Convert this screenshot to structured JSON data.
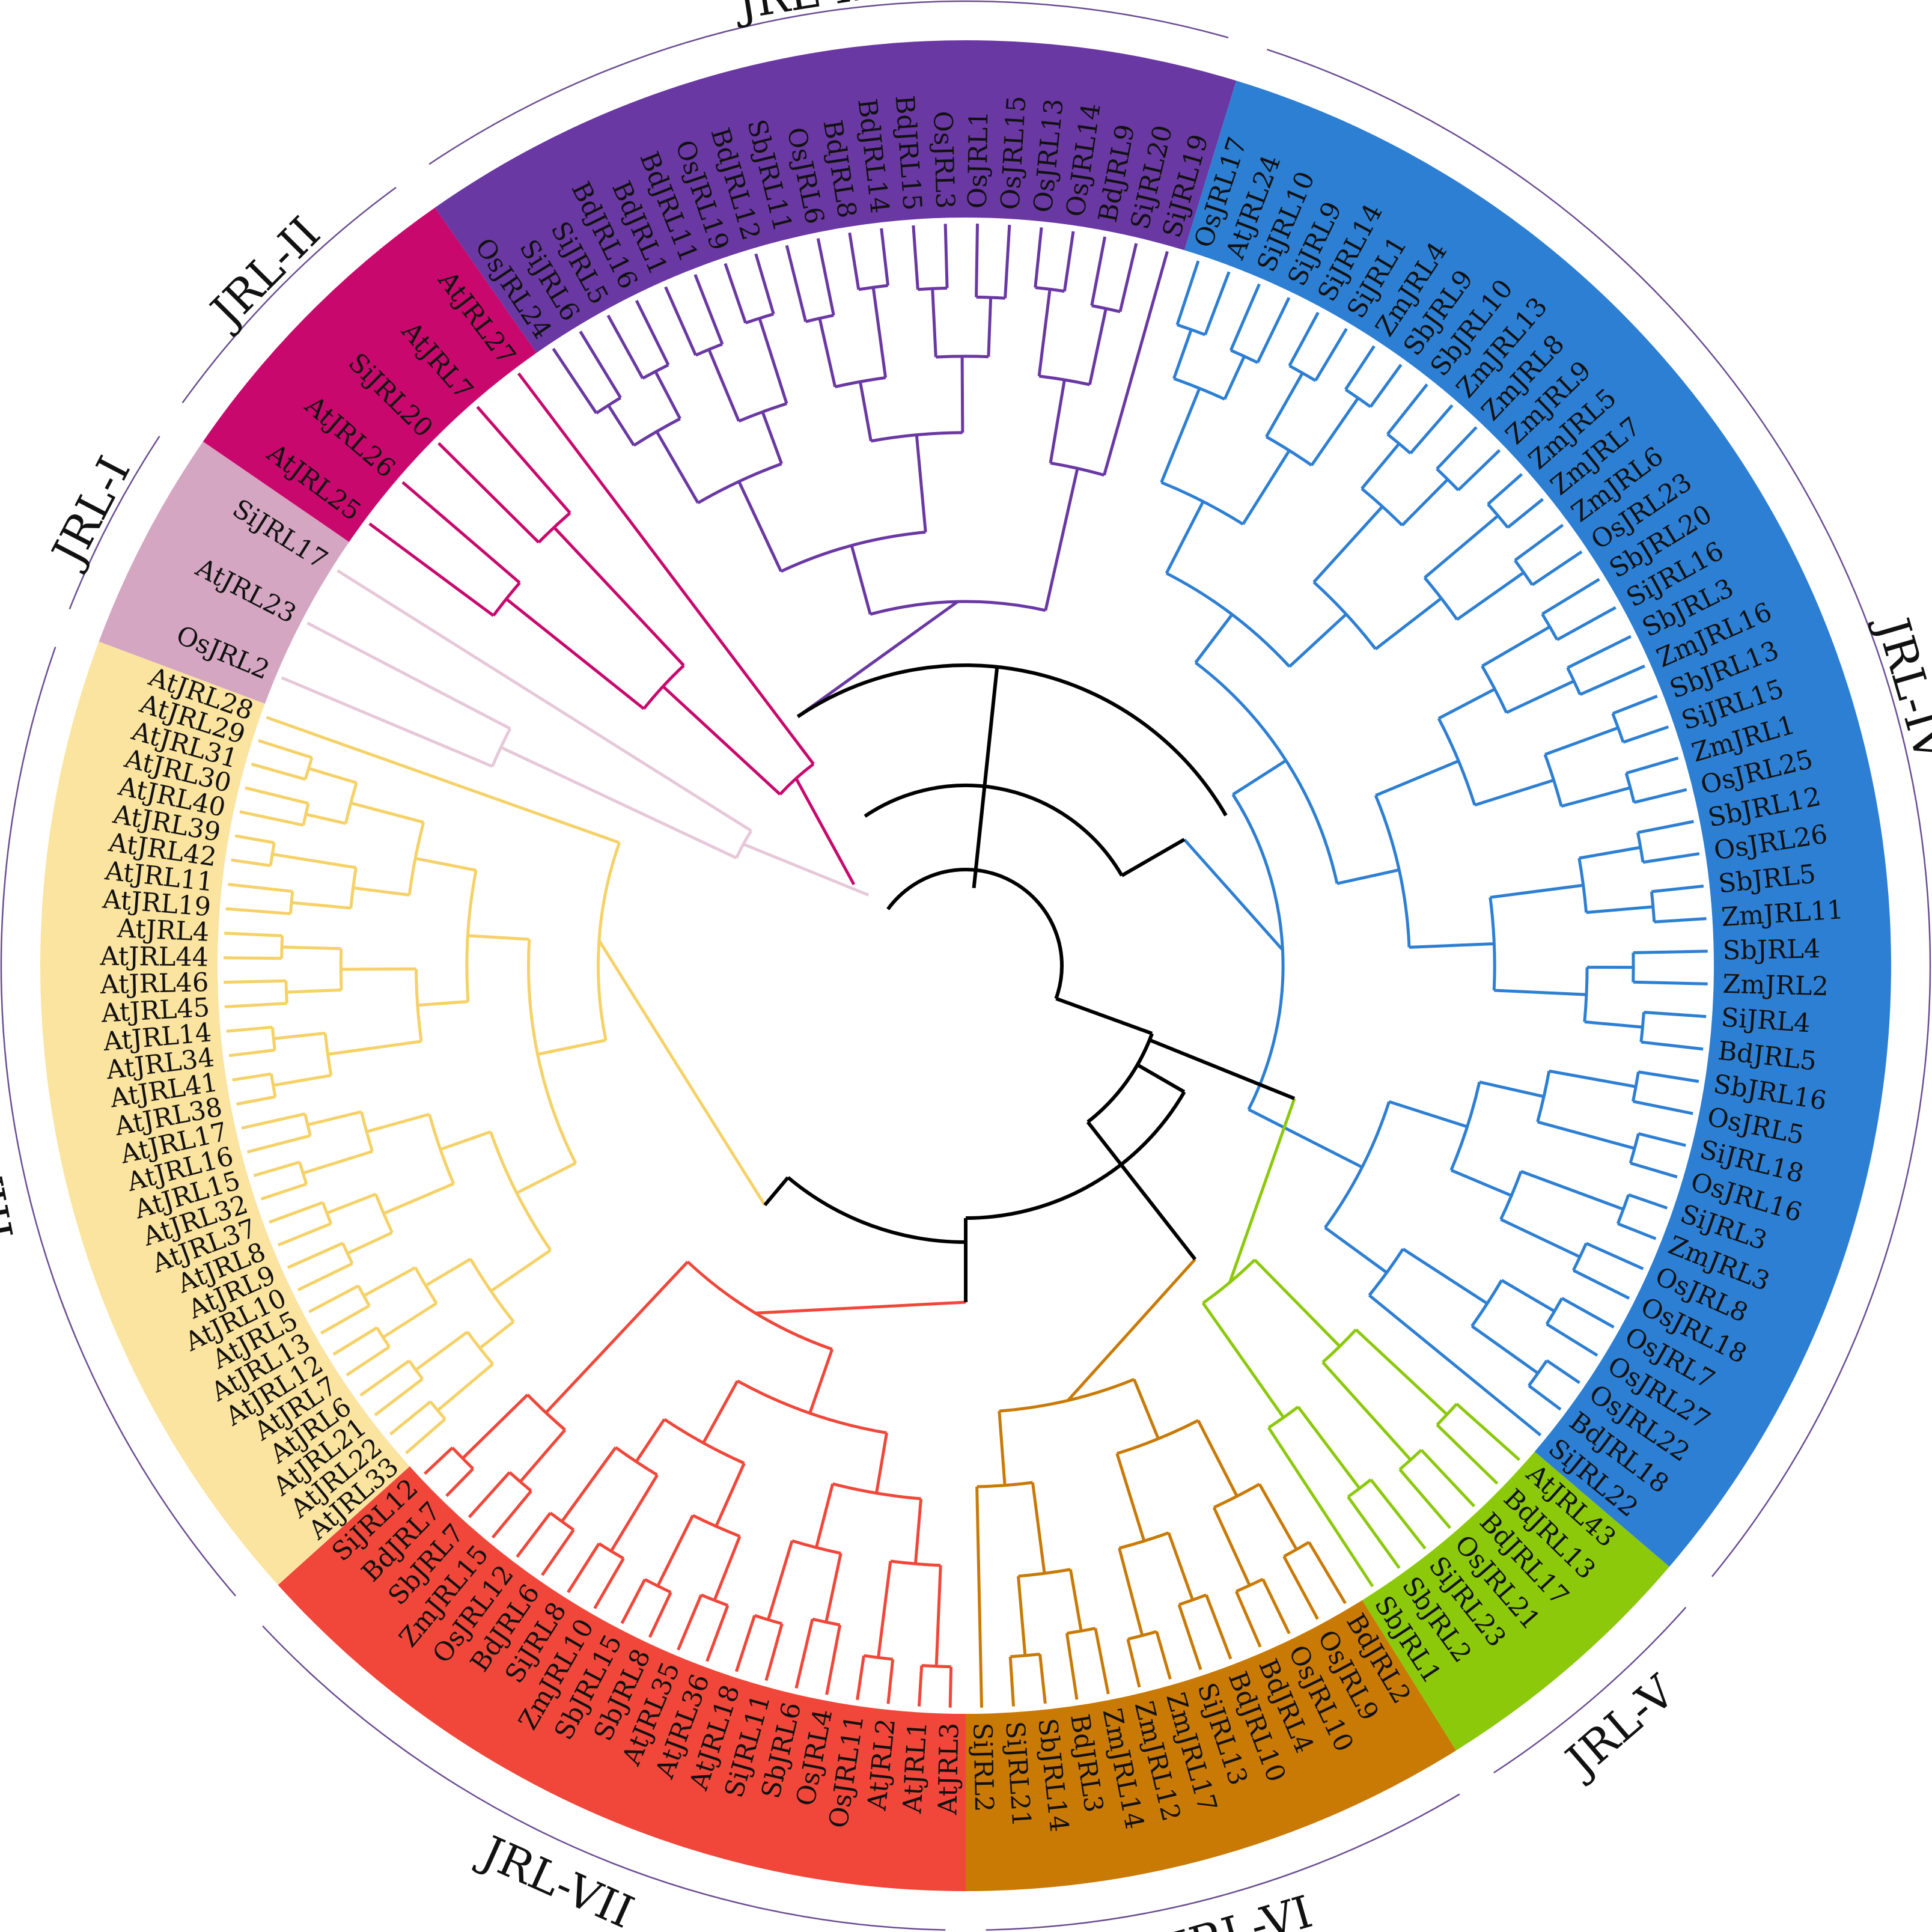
{
  "figure": {
    "title": "",
    "clade_boundary_color": "#6a4c93",
    "backbone_color": "#000000",
    "label_color": "#111111"
  },
  "clades": [
    {
      "id": "JRL-I",
      "label": "JRL-I",
      "band_color": "#d4a6c1",
      "line_color": "#e6c8d8",
      "leaves": [
        "OsJRL2",
        "AtJRL23",
        "SiJRL17"
      ]
    },
    {
      "id": "JRL-II",
      "label": "JRL-II",
      "band_color": "#c9086d",
      "line_color": "#c9086d",
      "leaves": [
        "AtJRL25",
        "AtJRL26",
        "SiJRL20",
        "AtJRL7",
        "AtJRL27"
      ]
    },
    {
      "id": "JRL-III",
      "label": "JRL-III",
      "band_color": "#6a38a3",
      "line_color": "#6a38a3",
      "leaves": [
        "OsJRL24",
        "SiJRL6",
        "SiJRL5",
        "BdJRL16",
        "BdJRL1",
        "BdJRL11",
        "OsJRL19",
        "BdJRL12",
        "SbJRL11",
        "OsJRL6",
        "BdJRL8",
        "BdJRL14",
        "BdJRL15",
        "OsJRL3",
        "OsJRL1",
        "OsJRL15",
        "OsJRL13",
        "OsJRL14",
        "BdJRL9",
        "SiJRL20",
        "SiJRL19"
      ]
    },
    {
      "id": "JRL-IV",
      "label": "JRL-IV",
      "band_color": "#2d7fd3",
      "line_color": "#2d7fd3",
      "leaves": [
        "OsJRL17",
        "AtJRL24",
        "SiJRL10",
        "SiJRL9",
        "SiJRL14",
        "SiJRL1",
        "ZmJRL4",
        "SbJRL9",
        "SbJRL10",
        "ZmJRL13",
        "ZmJRL8",
        "ZmJRL9",
        "ZmJRL5",
        "ZmJRL7",
        "ZmJRL6",
        "OsJRL23",
        "SbJRL20",
        "SiJRL16",
        "SbJRL3",
        "ZmJRL16",
        "SbJRL13",
        "SiJRL15",
        "ZmJRL1",
        "OsJRL25",
        "SbJRL12",
        "OsJRL26",
        "SbJRL5",
        "ZmJRL11",
        "SbJRL4",
        "ZmJRL2",
        "SiJRL4",
        "BdJRL5",
        "SbJRL16",
        "OsJRL5",
        "SiJRL18",
        "OsJRL16",
        "SiJRL3",
        "ZmJRL3",
        "OsJRL8",
        "OsJRL18",
        "OsJRL7",
        "OsJRL27",
        "OsJRL22",
        "BdJRL18",
        "SiJRL22"
      ]
    },
    {
      "id": "JRL-V",
      "label": "JRL-V",
      "band_color": "#8cc90a",
      "line_color": "#8cc90a",
      "leaves": [
        "AtJRL43",
        "BdJRL13",
        "BdJRL17",
        "OsJRL21",
        "SiJRL23",
        "SbJRL2",
        "SbJRL1"
      ]
    },
    {
      "id": "JRL-VI",
      "label": "JRL-VI",
      "band_color": "#c97a05",
      "line_color": "#c97a05",
      "leaves": [
        "BdJRL2",
        "OsJRL9",
        "OsJRL10",
        "BdJRL4",
        "BdJRL10",
        "SiJRL13",
        "ZmJRL17",
        "ZmJRL12",
        "ZmJRL14",
        "BdJRL3",
        "SbJRL14",
        "SiJRL21",
        "SiJRL2"
      ]
    },
    {
      "id": "JRL-VII",
      "label": "JRL-VII",
      "band_color": "#f0473a",
      "line_color": "#f0473a",
      "leaves": [
        "AtJRL3",
        "AtJRL1",
        "AtJRL2",
        "OsJRL11",
        "OsJRL4",
        "SbJRL6",
        "SiJRL11",
        "AtJRL18",
        "AtJRL36",
        "AtJRL35",
        "SbJRL8",
        "SbJRL15",
        "ZmJRL10",
        "SiJRL8",
        "BdJRL6",
        "OsJRL12",
        "ZmJRL15",
        "SbJRL7",
        "BdJRL7",
        "SiJRL12"
      ]
    },
    {
      "id": "JRL-VIII",
      "label": "JRL-VIII",
      "band_color": "#fbe3a0",
      "line_color": "#f5d166",
      "leaves": [
        "AtJRL33",
        "AtJRL22",
        "AtJRL21",
        "AtJRL6",
        "AtJRL7",
        "AtJRL12",
        "AtJRL13",
        "AtJRL5",
        "AtJRL10",
        "AtJRL9",
        "AtJRL8",
        "AtJRL37",
        "AtJRL32",
        "AtJRL15",
        "AtJRL16",
        "AtJRL17",
        "AtJRL38",
        "AtJRL41",
        "AtJRL34",
        "AtJRL14",
        "AtJRL45",
        "AtJRL46",
        "AtJRL44",
        "AtJRL4",
        "AtJRL19",
        "AtJRL11",
        "AtJRL42",
        "AtJRL39",
        "AtJRL40",
        "AtJRL30",
        "AtJRL31",
        "AtJRL29",
        "AtJRL28"
      ]
    }
  ]
}
